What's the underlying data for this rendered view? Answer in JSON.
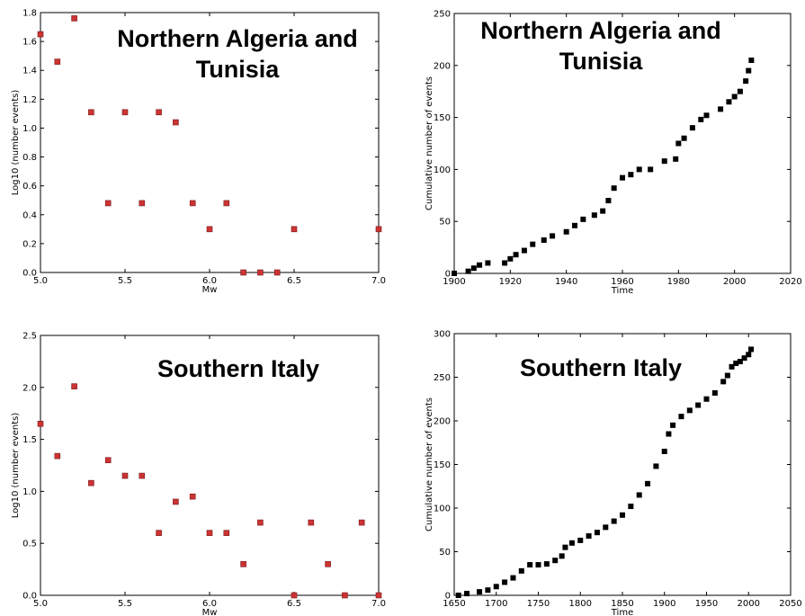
{
  "chart_data": [
    {
      "type": "scatter",
      "title": [
        "Northern Algeria and",
        "Tunisia"
      ],
      "xlabel": "Mw",
      "ylabel": "Log10 (number events)",
      "xlim": [
        5.0,
        7.0
      ],
      "ylim": [
        0.0,
        1.8
      ],
      "xticks": [
        "5.0",
        "5.5",
        "6.0",
        "6.5",
        "7.0"
      ],
      "xtick_values": [
        5.0,
        5.5,
        6.0,
        6.5,
        7.0
      ],
      "yticks": [
        "0.0",
        "0.2",
        "0.4",
        "0.6",
        "0.8",
        "1.0",
        "1.2",
        "1.4",
        "1.6",
        "1.8"
      ],
      "ytick_values": [
        0.0,
        0.2,
        0.4,
        0.6,
        0.8,
        1.0,
        1.2,
        1.4,
        1.6,
        1.8
      ],
      "marker_color": "#cc3333",
      "x": [
        5.0,
        5.1,
        5.2,
        5.3,
        5.4,
        5.5,
        5.6,
        5.7,
        5.8,
        5.9,
        6.0,
        6.1,
        6.2,
        6.3,
        6.4,
        6.5,
        7.0
      ],
      "y": [
        1.65,
        1.46,
        1.76,
        1.11,
        0.48,
        1.11,
        0.48,
        1.11,
        1.04,
        0.48,
        0.3,
        0.48,
        0.0,
        0.0,
        0.0,
        0.3,
        0.3
      ]
    },
    {
      "type": "line",
      "title": [
        "Northern Algeria and",
        "Tunisia"
      ],
      "xlabel": "Time",
      "ylabel": "Cumulative number of events",
      "xlim": [
        1900,
        2020
      ],
      "ylim": [
        0,
        250
      ],
      "xticks": [
        "1900",
        "1920",
        "1940",
        "1960",
        "1980",
        "2000",
        "2020"
      ],
      "xtick_values": [
        1900,
        1920,
        1940,
        1960,
        1980,
        2000,
        2020
      ],
      "yticks": [
        "0",
        "50",
        "100",
        "150",
        "200",
        "250"
      ],
      "ytick_values": [
        0,
        50,
        100,
        150,
        200,
        250
      ],
      "marker_color": "#000000",
      "x": [
        1900,
        1905,
        1907,
        1909,
        1912,
        1918,
        1920,
        1922,
        1925,
        1928,
        1932,
        1935,
        1940,
        1943,
        1946,
        1950,
        1953,
        1955,
        1957,
        1960,
        1963,
        1966,
        1970,
        1975,
        1979,
        1980,
        1982,
        1985,
        1988,
        1990,
        1995,
        1998,
        2000,
        2002,
        2004,
        2005,
        2006
      ],
      "y": [
        0,
        2,
        5,
        8,
        10,
        10,
        14,
        18,
        22,
        28,
        32,
        36,
        40,
        46,
        52,
        56,
        60,
        70,
        82,
        92,
        95,
        100,
        100,
        108,
        110,
        125,
        130,
        140,
        148,
        152,
        158,
        165,
        170,
        175,
        185,
        195,
        205
      ]
    },
    {
      "type": "scatter",
      "title": [
        "Southern Italy"
      ],
      "xlabel": "Mw",
      "ylabel": "Log10 (number events)",
      "xlim": [
        5.0,
        7.0
      ],
      "ylim": [
        0.0,
        2.5
      ],
      "xticks": [
        "5.0",
        "5.5",
        "6.0",
        "6.5",
        "7.0"
      ],
      "xtick_values": [
        5.0,
        5.5,
        6.0,
        6.5,
        7.0
      ],
      "yticks": [
        "0.0",
        "0.5",
        "1.0",
        "1.5",
        "2.0",
        "2.5"
      ],
      "ytick_values": [
        0.0,
        0.5,
        1.0,
        1.5,
        2.0,
        2.5
      ],
      "marker_color": "#cc3333",
      "x": [
        5.0,
        5.1,
        5.2,
        5.3,
        5.4,
        5.5,
        5.6,
        5.7,
        5.8,
        5.9,
        6.0,
        6.1,
        6.2,
        6.3,
        6.5,
        6.6,
        6.7,
        6.8,
        6.9,
        7.0
      ],
      "y": [
        1.65,
        1.34,
        2.01,
        1.08,
        1.3,
        1.15,
        1.15,
        0.6,
        0.9,
        0.95,
        0.6,
        0.6,
        0.3,
        0.7,
        0.0,
        0.7,
        0.3,
        0.0,
        0.7,
        0.0
      ]
    },
    {
      "type": "line",
      "title": [
        "Southern Italy"
      ],
      "xlabel": "Time",
      "ylabel": "Cumulative number of events",
      "xlim": [
        1650,
        2050
      ],
      "ylim": [
        0,
        300
      ],
      "xticks": [
        "1650",
        "1700",
        "1750",
        "1800",
        "1850",
        "1900",
        "1950",
        "2000",
        "2050"
      ],
      "xtick_values": [
        1650,
        1700,
        1750,
        1800,
        1850,
        1900,
        1950,
        2000,
        2050
      ],
      "yticks": [
        "0",
        "50",
        "100",
        "150",
        "200",
        "250",
        "300"
      ],
      "ytick_values": [
        0,
        50,
        100,
        150,
        200,
        250,
        300
      ],
      "marker_color": "#000000",
      "x": [
        1655,
        1665,
        1680,
        1690,
        1700,
        1710,
        1720,
        1730,
        1740,
        1750,
        1760,
        1770,
        1778,
        1782,
        1790,
        1800,
        1810,
        1820,
        1830,
        1840,
        1850,
        1860,
        1870,
        1880,
        1890,
        1900,
        1905,
        1910,
        1920,
        1930,
        1940,
        1950,
        1960,
        1970,
        1975,
        1980,
        1985,
        1990,
        1995,
        2000,
        2003
      ],
      "y": [
        0,
        2,
        4,
        6,
        10,
        15,
        20,
        28,
        35,
        35,
        36,
        40,
        45,
        55,
        60,
        63,
        68,
        72,
        78,
        85,
        92,
        102,
        115,
        128,
        148,
        165,
        185,
        195,
        205,
        212,
        218,
        225,
        232,
        245,
        252,
        262,
        266,
        268,
        272,
        276,
        282
      ]
    }
  ]
}
